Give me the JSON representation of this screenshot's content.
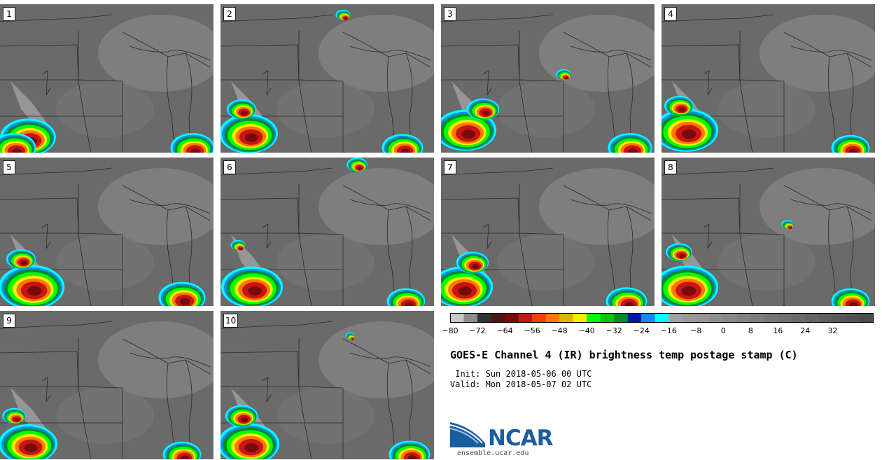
{
  "panels": [
    {
      "label": "1",
      "storms": [
        [
          40,
          190,
          38
        ],
        [
          20,
          205,
          30
        ],
        [
          275,
          205,
          30
        ]
      ]
    },
    {
      "label": "2",
      "storms": [
        [
          40,
          185,
          40
        ],
        [
          30,
          150,
          20
        ],
        [
          580,
          205,
          0
        ],
        [
          260,
          205,
          28
        ],
        [
          175,
          15,
          10
        ]
      ]
    },
    {
      "label": "3",
      "storms": [
        [
          35,
          180,
          42
        ],
        [
          60,
          150,
          22
        ],
        [
          270,
          205,
          30
        ],
        [
          175,
          100,
          10
        ]
      ]
    },
    {
      "label": "4",
      "storms": [
        [
          35,
          180,
          44
        ],
        [
          25,
          145,
          20
        ],
        [
          270,
          205,
          26
        ]
      ]
    },
    {
      "label": "5",
      "storms": [
        [
          45,
          185,
          45
        ],
        [
          30,
          145,
          20
        ],
        [
          260,
          200,
          32
        ]
      ]
    },
    {
      "label": "6",
      "storms": [
        [
          45,
          185,
          42
        ],
        [
          25,
          125,
          10
        ],
        [
          265,
          205,
          26
        ],
        [
          195,
          10,
          14
        ]
      ]
    },
    {
      "label": "7",
      "storms": [
        [
          30,
          185,
          42
        ],
        [
          45,
          150,
          22
        ],
        [
          265,
          205,
          28
        ]
      ]
    },
    {
      "label": "8",
      "storms": [
        [
          35,
          185,
          44
        ],
        [
          25,
          135,
          18
        ],
        [
          270,
          205,
          26
        ],
        [
          180,
          95,
          8
        ]
      ]
    },
    {
      "label": "9",
      "storms": [
        [
          40,
          190,
          40
        ],
        [
          20,
          150,
          16
        ],
        [
          260,
          205,
          26
        ]
      ]
    },
    {
      "label": "10",
      "storms": [
        [
          40,
          190,
          42
        ],
        [
          30,
          150,
          22
        ],
        [
          270,
          205,
          28
        ],
        [
          185,
          35,
          6
        ]
      ]
    }
  ],
  "colorbar": {
    "colors": [
      "#c8c8c8",
      "#8c8c8c",
      "#323232",
      "#501414",
      "#780a0a",
      "#c81414",
      "#ff3c00",
      "#ff7800",
      "#dcb400",
      "#f0f000",
      "#00ff00",
      "#00c800",
      "#008c28",
      "#0014b4",
      "#0a8cff",
      "#00ffff",
      "#a0a0a0",
      "#9a9a9a",
      "#949494",
      "#8e8e8e",
      "#888888",
      "#828282",
      "#7c7c7c",
      "#767676",
      "#707070",
      "#6a6a6a",
      "#646464",
      "#5e5e5e",
      "#585858",
      "#525252",
      "#4c4c4c"
    ],
    "ticks": [
      "−80",
      "−72",
      "−64",
      "−56",
      "−48",
      "−40",
      "−32",
      "−24",
      "−16",
      "−8",
      "0",
      "8",
      "16",
      "24",
      "32"
    ]
  },
  "title": "GOES-E Channel 4 (IR) brightness temp postage stamp (C)",
  "init": " Init: Sun 2018-05-06 00 UTC",
  "valid": "Valid: Mon 2018-05-07 02 UTC",
  "logo": {
    "text": "NCAR",
    "site": "ensemble.ucar.edu",
    "color": "#1a5ea0"
  }
}
